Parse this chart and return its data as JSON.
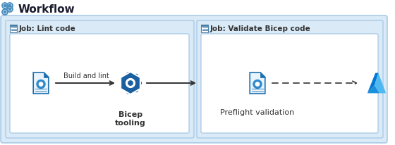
{
  "bg_color": "#ffffff",
  "workflow_title": "Workflow",
  "outer_box_color": "#daeaf7",
  "outer_box_edge": "#9cc4e4",
  "inner_box_color": "#ffffff",
  "inner_box_edge": "#9cc4e4",
  "job1_label": "Job: Lint code",
  "job2_label": "Job: Validate Bicep code",
  "step1_label": "Build and lint",
  "step1b_label": "Bicep\ntooling",
  "step2_label": "Preflight validation",
  "arrow_color": "#333333",
  "text_color": "#333333",
  "icon_blue_dark": "#1c6fad",
  "icon_blue_mid": "#2e88cc",
  "icon_blue_light": "#e8f3fb",
  "hex_color": "#1a5fa0",
  "azure_dark": "#0078d4",
  "azure_light": "#50b8f0",
  "header_icon_color": "#4a7fa8"
}
